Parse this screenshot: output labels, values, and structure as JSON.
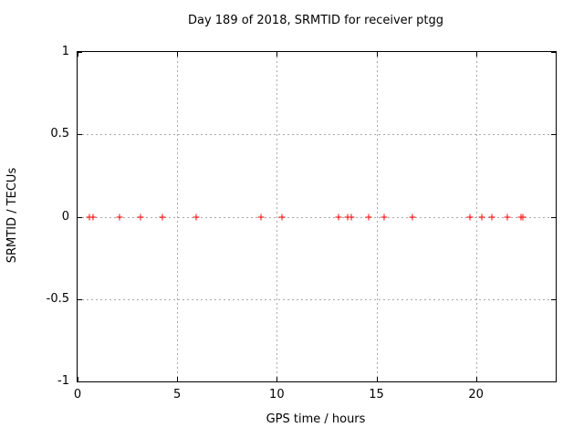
{
  "chart_data": {
    "type": "scatter",
    "title": "Day 189 of 2018, SRMTID for receiver ptgg",
    "xlabel": "GPS time / hours",
    "ylabel": "SRMTID / TECUs",
    "xlim": [
      0,
      24
    ],
    "ylim": [
      -1,
      1
    ],
    "grid": true,
    "legend": "none",
    "xticks": [
      {
        "v": 0,
        "label": "0"
      },
      {
        "v": 5,
        "label": "5"
      },
      {
        "v": 10,
        "label": "10"
      },
      {
        "v": 15,
        "label": "15"
      },
      {
        "v": 20,
        "label": "20"
      }
    ],
    "yticks": [
      {
        "v": -1,
        "label": "-1"
      },
      {
        "v": -0.5,
        "label": "-0.5"
      },
      {
        "v": 0,
        "label": "0"
      },
      {
        "v": 0.5,
        "label": "0.5"
      },
      {
        "v": 1,
        "label": "1"
      }
    ],
    "grid_x": [
      5,
      10,
      15,
      20
    ],
    "grid_y": [
      -0.5,
      0,
      0.5
    ],
    "series": [
      {
        "name": "SRMTID",
        "marker": "plus",
        "color": "#ff0000",
        "points": [
          [
            0.6,
            0
          ],
          [
            0.78,
            0
          ],
          [
            2.1,
            0
          ],
          [
            3.16,
            0
          ],
          [
            4.25,
            0
          ],
          [
            5.95,
            0
          ],
          [
            9.2,
            0
          ],
          [
            10.27,
            0
          ],
          [
            13.09,
            0
          ],
          [
            13.58,
            0
          ],
          [
            13.74,
            0
          ],
          [
            14.6,
            0
          ],
          [
            15.41,
            0
          ],
          [
            16.83,
            0
          ],
          [
            19.7,
            0
          ],
          [
            20.3,
            0
          ],
          [
            20.79,
            0
          ],
          [
            21.59,
            0
          ],
          [
            22.26,
            0
          ],
          [
            22.34,
            0
          ]
        ]
      }
    ]
  },
  "colors": {
    "marker": "#ff0000",
    "grid": "#a8a8a8",
    "border": "#000000",
    "background": "#ffffff",
    "text": "#000000"
  }
}
